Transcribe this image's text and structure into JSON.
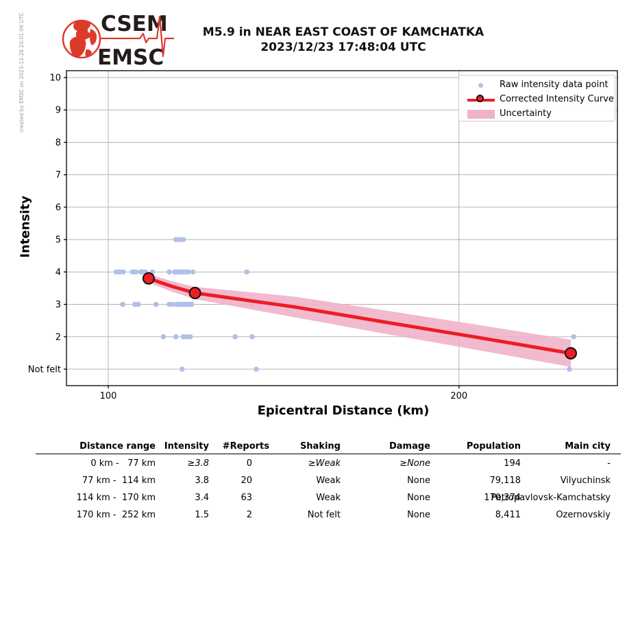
{
  "header": {
    "credit": "created by EMSC on 2023-12-28 20:01:06 UTC",
    "logo_line1": "CSEM",
    "logo_line2": "EMSC",
    "title_line1": "M5.9 in NEAR EAST COAST OF KAMCHATKA",
    "title_line2": "2023/12/23 17:48:04 UTC"
  },
  "chart_data": {
    "type": "scatter",
    "title": "",
    "xlabel": "Epicentral Distance (km)",
    "ylabel": "Intensity",
    "x_scale": "log",
    "x_range_km": [
      92,
      274
    ],
    "x_ticks": [
      {
        "v": 100,
        "label": "100"
      },
      {
        "v": 200,
        "label": "200"
      }
    ],
    "y_ticks": [
      {
        "v": 1,
        "label": "Not felt"
      },
      {
        "v": 2,
        "label": "2"
      },
      {
        "v": 3,
        "label": "3"
      },
      {
        "v": 4,
        "label": "4"
      },
      {
        "v": 5,
        "label": "5"
      },
      {
        "v": 6,
        "label": "6"
      },
      {
        "v": 7,
        "label": "7"
      },
      {
        "v": 8,
        "label": "8"
      },
      {
        "v": 9,
        "label": "9"
      },
      {
        "v": 10,
        "label": "10"
      }
    ],
    "grid": true,
    "legend_position": "upper right",
    "legend": [
      "Raw intensity data point",
      "Corrected Intensity Curve",
      "Uncertainty"
    ],
    "colors": {
      "raw_point": "#b0c0ea",
      "curve": "#ee1c25",
      "marker_edge": "#111111",
      "uncertainty": "#efb2ca",
      "grid": "#b3b3b3",
      "spine": "#000000"
    },
    "raw_points": [
      {
        "d": 114.3,
        "i": 5
      },
      {
        "d": 115.2,
        "i": 5
      },
      {
        "d": 116.0,
        "i": 5
      },
      {
        "d": 101.6,
        "i": 4
      },
      {
        "d": 102.3,
        "i": 4
      },
      {
        "d": 103.0,
        "i": 4
      },
      {
        "d": 104.9,
        "i": 4
      },
      {
        "d": 105.6,
        "i": 4
      },
      {
        "d": 106.6,
        "i": 4
      },
      {
        "d": 107.0,
        "i": 4
      },
      {
        "d": 107.6,
        "i": 4
      },
      {
        "d": 109.1,
        "i": 4
      },
      {
        "d": 112.8,
        "i": 4
      },
      {
        "d": 114.0,
        "i": 4
      },
      {
        "d": 114.5,
        "i": 4
      },
      {
        "d": 115.1,
        "i": 4
      },
      {
        "d": 115.5,
        "i": 4
      },
      {
        "d": 116.0,
        "i": 4
      },
      {
        "d": 116.7,
        "i": 4
      },
      {
        "d": 117.1,
        "i": 4
      },
      {
        "d": 118.2,
        "i": 4
      },
      {
        "d": 131.5,
        "i": 4
      },
      {
        "d": 102.9,
        "i": 3
      },
      {
        "d": 105.4,
        "i": 3
      },
      {
        "d": 106.1,
        "i": 3
      },
      {
        "d": 109.9,
        "i": 3
      },
      {
        "d": 112.8,
        "i": 3
      },
      {
        "d": 113.6,
        "i": 3
      },
      {
        "d": 114.5,
        "i": 3
      },
      {
        "d": 115.1,
        "i": 3
      },
      {
        "d": 115.5,
        "i": 3
      },
      {
        "d": 116.0,
        "i": 3
      },
      {
        "d": 116.5,
        "i": 3
      },
      {
        "d": 117.0,
        "i": 3
      },
      {
        "d": 117.4,
        "i": 3
      },
      {
        "d": 117.9,
        "i": 3
      },
      {
        "d": 131.0,
        "i": 3
      },
      {
        "d": 132.9,
        "i": 3
      },
      {
        "d": 135.1,
        "i": 3
      },
      {
        "d": 111.5,
        "i": 2
      },
      {
        "d": 114.3,
        "i": 2
      },
      {
        "d": 116.0,
        "i": 2
      },
      {
        "d": 116.8,
        "i": 2
      },
      {
        "d": 117.6,
        "i": 2
      },
      {
        "d": 128.5,
        "i": 2
      },
      {
        "d": 132.9,
        "i": 2
      },
      {
        "d": 250.9,
        "i": 2
      },
      {
        "d": 115.7,
        "i": 1
      },
      {
        "d": 134.0,
        "i": 1
      },
      {
        "d": 248.8,
        "i": 1
      }
    ],
    "corrected_curve": [
      {
        "d": 108.3,
        "i": 3.8,
        "w": 0.13,
        "marker": true
      },
      {
        "d": 113.3,
        "i": 3.56,
        "w": 0.16,
        "marker": false
      },
      {
        "d": 118.7,
        "i": 3.35,
        "w": 0.19,
        "marker": true
      },
      {
        "d": 144.5,
        "i": 2.92,
        "w": 0.32,
        "marker": false
      },
      {
        "d": 172.4,
        "i": 2.46,
        "w": 0.36,
        "marker": false
      },
      {
        "d": 208.3,
        "i": 1.97,
        "w": 0.39,
        "marker": false
      },
      {
        "d": 249.5,
        "i": 1.49,
        "w": 0.42,
        "marker": true
      }
    ]
  },
  "table": {
    "headers": [
      "Distance range",
      "Intensity",
      "#Reports",
      "Shaking",
      "Damage",
      "Population",
      "Main city"
    ],
    "rows": [
      {
        "cells": [
          "0 km -   77 km",
          "≥3.8",
          "0",
          "≥Weak",
          "≥None",
          "194",
          "-"
        ],
        "italic_cells": [
          1,
          3,
          4
        ]
      },
      {
        "cells": [
          "77 km -  114 km",
          "3.8",
          "20",
          "Weak",
          "None",
          "79,118",
          "Vilyuchinsk"
        ],
        "italic_cells": []
      },
      {
        "cells": [
          "114 km -  170 km",
          "3.4",
          "63",
          "Weak",
          "None",
          "170,374",
          "Petropavlovsk-Kamchatsky"
        ],
        "italic_cells": []
      },
      {
        "cells": [
          "170 km -  252 km",
          "1.5",
          "2",
          "Not felt",
          "None",
          "8,411",
          "Ozernovskiy"
        ],
        "italic_cells": []
      }
    ]
  }
}
